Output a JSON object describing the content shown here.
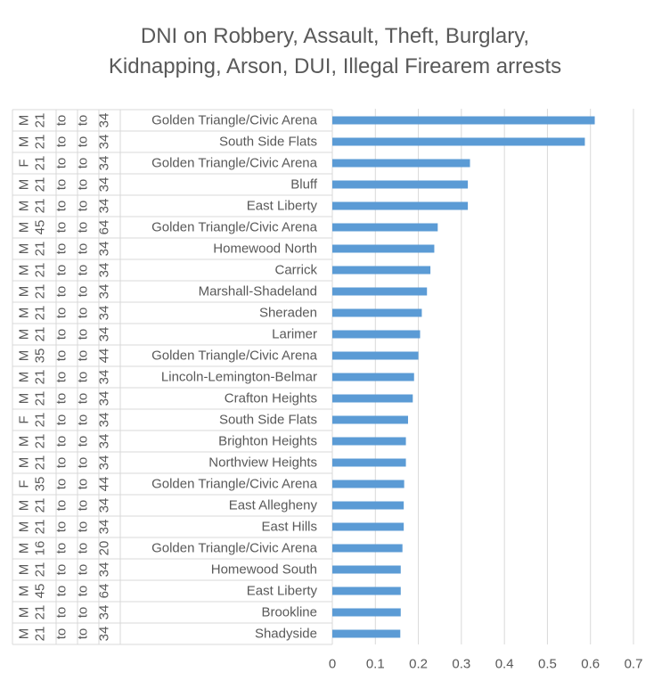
{
  "chart_data": {
    "type": "bar",
    "orientation": "horizontal",
    "title_lines": [
      "DNI on Robbery, Assault, Theft, Burglary,",
      "Kidnapping, Arson, DUI, Illegal Firearem arrests"
    ],
    "categories": [
      {
        "sex": "M",
        "age_from": "21",
        "age_to": "34",
        "neighborhood": "Golden Triangle/Civic Arena"
      },
      {
        "sex": "M",
        "age_from": "21",
        "age_to": "34",
        "neighborhood": "South Side Flats"
      },
      {
        "sex": "F",
        "age_from": "21",
        "age_to": "34",
        "neighborhood": "Golden Triangle/Civic Arena"
      },
      {
        "sex": "M",
        "age_from": "21",
        "age_to": "34",
        "neighborhood": "Bluff"
      },
      {
        "sex": "M",
        "age_from": "21",
        "age_to": "34",
        "neighborhood": "East Liberty"
      },
      {
        "sex": "M",
        "age_from": "45",
        "age_to": "64",
        "neighborhood": "Golden Triangle/Civic Arena"
      },
      {
        "sex": "M",
        "age_from": "21",
        "age_to": "34",
        "neighborhood": "Homewood North"
      },
      {
        "sex": "M",
        "age_from": "21",
        "age_to": "34",
        "neighborhood": "Carrick"
      },
      {
        "sex": "M",
        "age_from": "21",
        "age_to": "34",
        "neighborhood": "Marshall-Shadeland"
      },
      {
        "sex": "M",
        "age_from": "21",
        "age_to": "34",
        "neighborhood": "Sheraden"
      },
      {
        "sex": "M",
        "age_from": "21",
        "age_to": "34",
        "neighborhood": "Larimer"
      },
      {
        "sex": "M",
        "age_from": "35",
        "age_to": "44",
        "neighborhood": "Golden Triangle/Civic Arena"
      },
      {
        "sex": "M",
        "age_from": "21",
        "age_to": "34",
        "neighborhood": "Lincoln-Lemington-Belmar"
      },
      {
        "sex": "M",
        "age_from": "21",
        "age_to": "34",
        "neighborhood": "Crafton Heights"
      },
      {
        "sex": "F",
        "age_from": "21",
        "age_to": "34",
        "neighborhood": "South Side Flats"
      },
      {
        "sex": "M",
        "age_from": "21",
        "age_to": "34",
        "neighborhood": "Brighton Heights"
      },
      {
        "sex": "M",
        "age_from": "21",
        "age_to": "34",
        "neighborhood": "Northview Heights"
      },
      {
        "sex": "F",
        "age_from": "35",
        "age_to": "44",
        "neighborhood": "Golden Triangle/Civic Arena"
      },
      {
        "sex": "M",
        "age_from": "21",
        "age_to": "34",
        "neighborhood": "East Allegheny"
      },
      {
        "sex": "M",
        "age_from": "21",
        "age_to": "34",
        "neighborhood": "East Hills"
      },
      {
        "sex": "M",
        "age_from": "16",
        "age_to": "20",
        "neighborhood": "Golden Triangle/Civic Arena"
      },
      {
        "sex": "M",
        "age_from": "21",
        "age_to": "34",
        "neighborhood": "Homewood South"
      },
      {
        "sex": "M",
        "age_from": "45",
        "age_to": "64",
        "neighborhood": "East Liberty"
      },
      {
        "sex": "M",
        "age_from": "21",
        "age_to": "34",
        "neighborhood": "Brookline"
      },
      {
        "sex": "M",
        "age_from": "21",
        "age_to": "34",
        "neighborhood": "Shadyside"
      }
    ],
    "range_word": "to",
    "values": [
      0.61,
      0.587,
      0.32,
      0.315,
      0.315,
      0.245,
      0.237,
      0.228,
      0.22,
      0.208,
      0.204,
      0.2,
      0.19,
      0.187,
      0.176,
      0.171,
      0.171,
      0.167,
      0.166,
      0.166,
      0.163,
      0.159,
      0.159,
      0.159,
      0.158
    ],
    "xlim": [
      0,
      0.7
    ],
    "x_ticks": [
      "0",
      "0.1",
      "0.2",
      "0.3",
      "0.4",
      "0.5",
      "0.6",
      "0.7"
    ],
    "grid": true,
    "bar_color": "#5B9BD5"
  }
}
